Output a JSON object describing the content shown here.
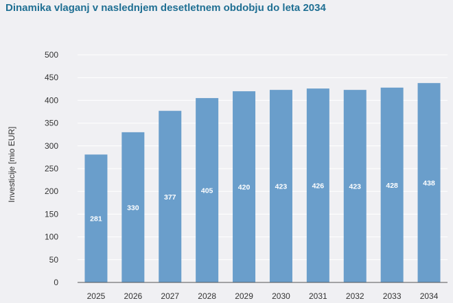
{
  "chart_data": {
    "type": "bar",
    "title": "Dinamika vlaganj v naslednjem desetletnem obdobju do leta 2034",
    "xlabel": "",
    "ylabel": "Investicije [mio EUR]",
    "categories": [
      "2025",
      "2026",
      "2027",
      "2028",
      "2029",
      "2030",
      "2031",
      "2032",
      "2033",
      "2034"
    ],
    "values": [
      281,
      330,
      377,
      405,
      420,
      423,
      426,
      423,
      428,
      438
    ],
    "ylim": [
      0,
      500
    ],
    "yticks": [
      0,
      50,
      100,
      150,
      200,
      250,
      300,
      350,
      400,
      450,
      500
    ],
    "grid": true,
    "bar_color": "#6a9ecb",
    "label_color": "#ffffff"
  }
}
